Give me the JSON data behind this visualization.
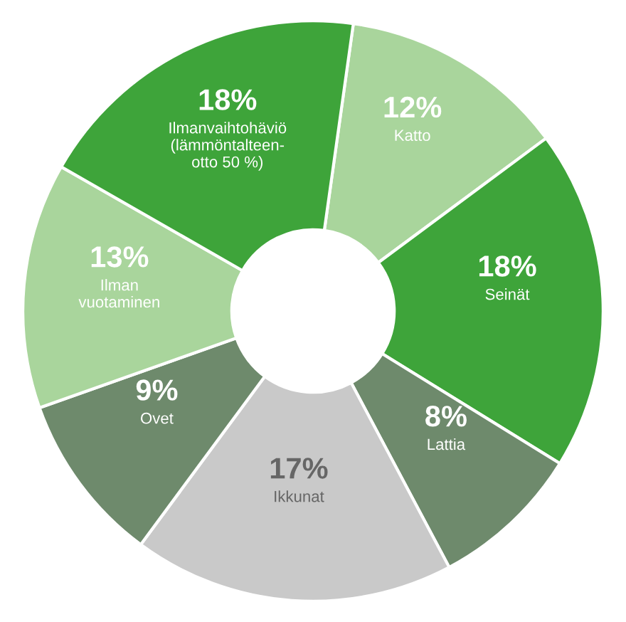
{
  "chart_data": {
    "type": "donut",
    "categories": [
      "Katto",
      "Seinät",
      "Lattia",
      "Ikkunat",
      "Ovet",
      "Ilman\nvuotaminen",
      "Ilmanvaihtohäviö\n(lämmöntalteen-\notto 50 %)"
    ],
    "values": [
      12,
      18,
      8,
      17,
      9,
      13,
      18
    ],
    "value_labels": [
      "12%",
      "18%",
      "8%",
      "17%",
      "9%",
      "13%",
      "18%"
    ],
    "colors": [
      "#a9d59c",
      "#3ea43a",
      "#6e8a6c",
      "#c9c9c9",
      "#6e8a6c",
      "#a9d59c",
      "#3ea43a"
    ],
    "legend": false
  }
}
